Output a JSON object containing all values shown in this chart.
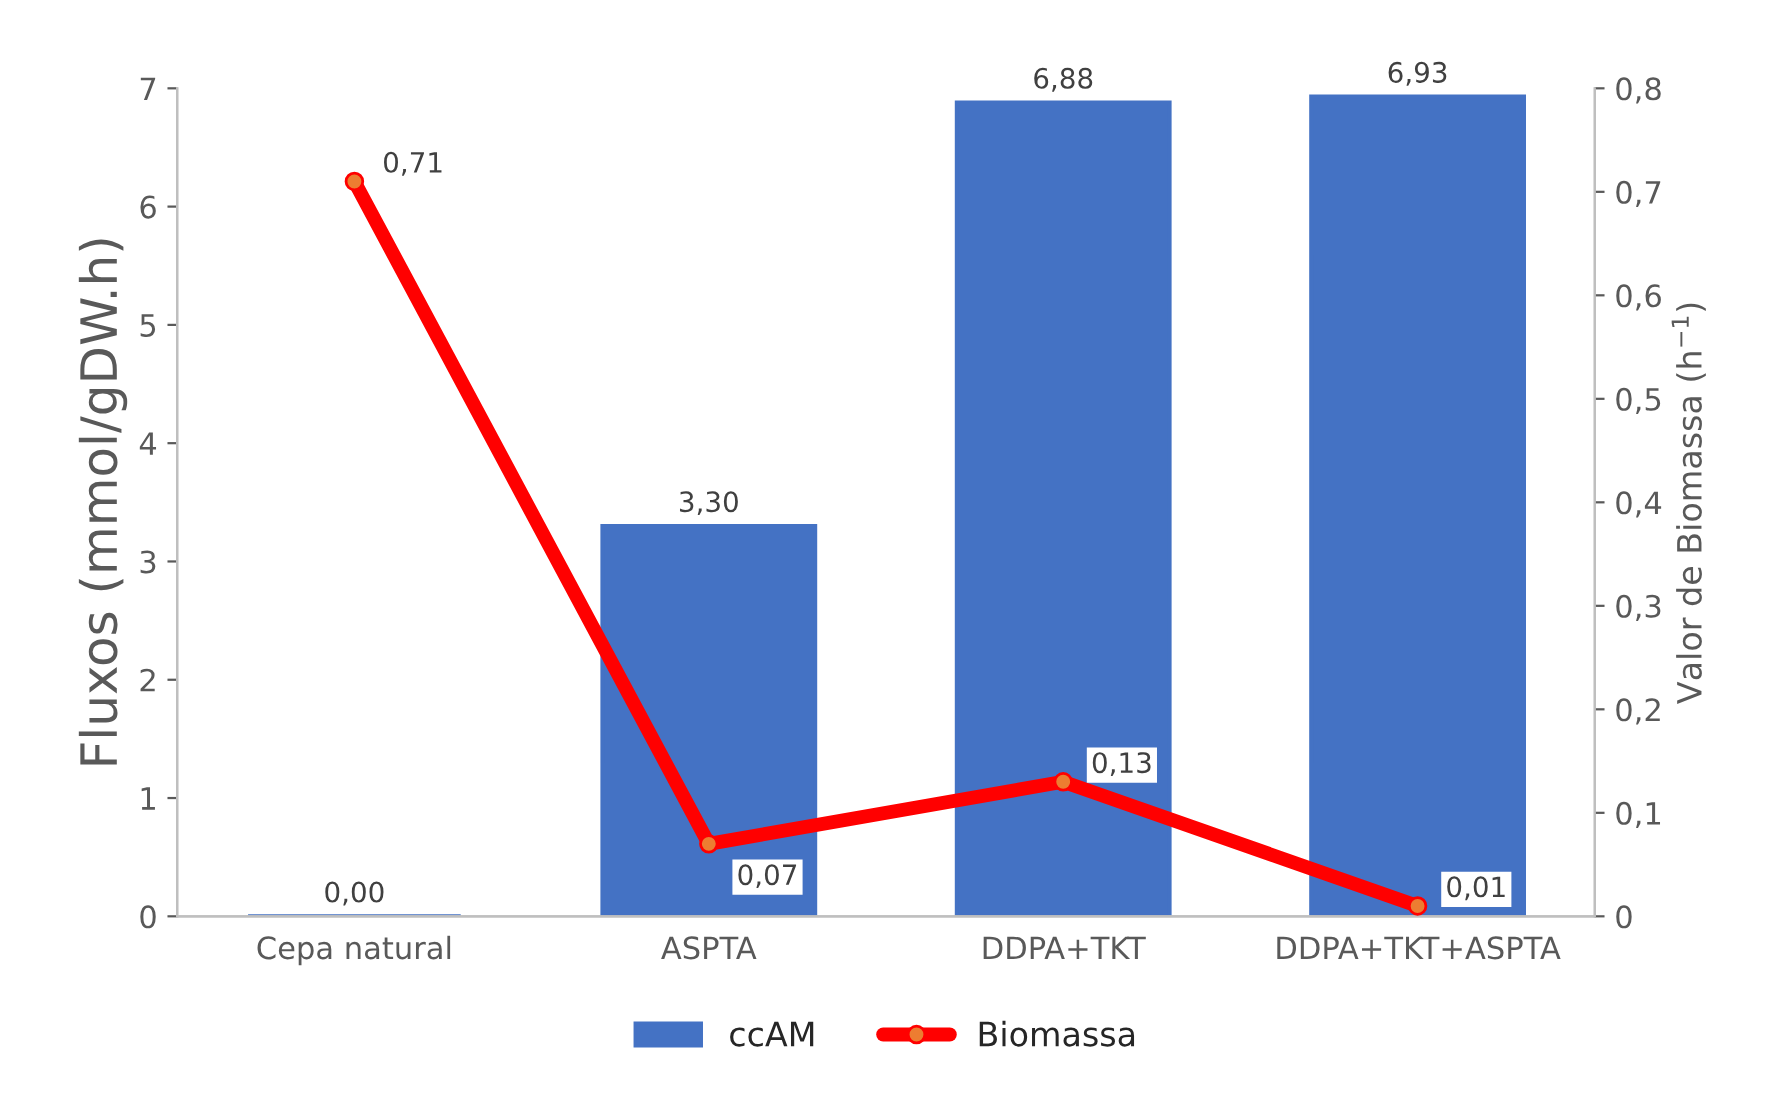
{
  "chart_data": {
    "type": "bar",
    "categories": [
      "Cepa natural",
      "ASPTA",
      "DDPA+TKT",
      "DDPA+TKT+ASPTA"
    ],
    "ylabel": "Fluxos (mmol/gDW.h)",
    "y2label": "Valor de Biomassa (h$^{−1}$)",
    "ylim": [
      0,
      7
    ],
    "yticks": [
      0,
      1,
      2,
      3,
      4,
      5,
      6,
      7
    ],
    "y2lim": [
      0,
      0.8
    ],
    "y2ticks": [
      0,
      {
        "value": 0.1,
        "label": "0,1"
      },
      {
        "value": 0.2,
        "label": "0,2"
      },
      {
        "value": 0.3,
        "label": "0,3"
      },
      {
        "value": 0.4,
        "label": "0,4"
      },
      {
        "value": 0.5,
        "label": "0,5"
      },
      {
        "value": 0.6,
        "label": "0,6"
      },
      {
        "value": 0.7,
        "label": "0,7"
      },
      {
        "value": 0.8,
        "label": "0,8"
      }
    ],
    "series": [
      {
        "name": "ccAM",
        "color": "#4472c4",
        "values": [
          0.0,
          3.3,
          6.88,
          6.93
        ],
        "value_labels": [
          "0,00",
          "3,30",
          "6,88",
          "6,93"
        ]
      },
      {
        "name": "Biomassa",
        "type": "line",
        "axis": "y2",
        "color": "#ff0000",
        "marker": "circle",
        "values": [
          0.71,
          0.07,
          0.13,
          0.01
        ],
        "value_labels": [
          "0,71",
          "0,07",
          "0,13",
          "0,01"
        ]
      }
    ],
    "legend": "bottom",
    "grid": false
  }
}
